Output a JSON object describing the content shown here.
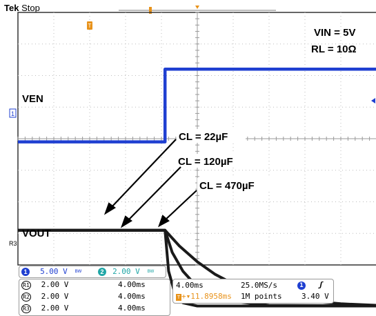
{
  "header": {
    "brand": "Tek",
    "state": "Stop"
  },
  "annotations": {
    "vin": "VIN = 5V",
    "rl": "RL = 10Ω",
    "ven": "VEN",
    "vout": "VOUT",
    "cl22": "CL = 22µF",
    "cl120": "CL = 120µF",
    "cl470": "CL = 470µF"
  },
  "channels": [
    {
      "id": "1",
      "scale": "5.00 V",
      "color": "#1f3fd1"
    },
    {
      "id": "2",
      "scale": "2.00 V",
      "color": "#20a6a6"
    }
  ],
  "refs": [
    {
      "id": "R1",
      "scale": "2.00 V",
      "time": "4.00ms"
    },
    {
      "id": "R2",
      "scale": "2.00 V",
      "time": "4.00ms"
    },
    {
      "id": "R3",
      "scale": "2.00 V",
      "time": "4.00ms"
    }
  ],
  "timebase": {
    "scale": "4.00ms",
    "rate": "25.0MS/s",
    "trigger_pos": "+▾11.8958ms",
    "points": "1M points",
    "trig_level": "3.40 V",
    "trig_ch": "1"
  },
  "colors": {
    "ven_trace": "#1f3fd1",
    "vout_trace": "#1a1a1a",
    "trigger": "#e8921a",
    "grid": "#bbbbbb"
  },
  "chart_data": {
    "type": "line",
    "x_divisions": 10,
    "y_divisions": 8,
    "series": [
      {
        "name": "VEN",
        "x": [
          0,
          4.1,
          4.1,
          10
        ],
        "y": [
          -0.1,
          -0.1,
          2.2,
          2.2
        ]
      },
      {
        "name": "CL = 22µF",
        "x": [
          0,
          4.1,
          4.2,
          4.4,
          4.6,
          5.0,
          10
        ],
        "y": [
          -2.9,
          -2.9,
          -4.2,
          -5.0,
          -5.2,
          -5.3,
          -5.3
        ]
      },
      {
        "name": "CL = 120µF",
        "x": [
          0,
          4.1,
          4.3,
          4.6,
          5.0,
          5.5,
          6.0,
          7.0,
          10
        ],
        "y": [
          -2.9,
          -2.9,
          -3.6,
          -4.2,
          -4.7,
          -5.0,
          -5.15,
          -5.28,
          -5.3
        ]
      },
      {
        "name": "CL = 470µF",
        "x": [
          0,
          4.1,
          4.5,
          5.0,
          5.5,
          6.0,
          6.5,
          7.0,
          8.0,
          9.0,
          10
        ],
        "y": [
          -2.9,
          -2.9,
          -3.4,
          -3.9,
          -4.3,
          -4.6,
          -4.8,
          -4.95,
          -5.13,
          -5.23,
          -5.28
        ]
      }
    ]
  }
}
